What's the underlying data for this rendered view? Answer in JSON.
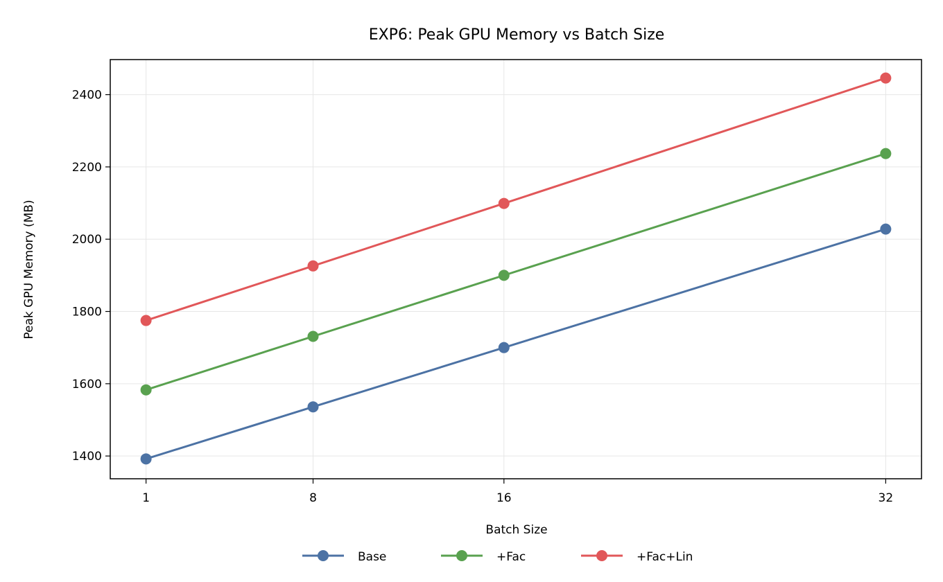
{
  "chart_data": {
    "type": "line",
    "title": "EXP6: Peak GPU Memory vs Batch Size",
    "xlabel": "Batch Size",
    "ylabel": "Peak GPU Memory (MB)",
    "x": [
      1,
      8,
      16,
      32
    ],
    "x_ticks": [
      "1",
      "8",
      "16",
      "32"
    ],
    "xlim": [
      -0.5,
      33.5
    ],
    "ylim": [
      1337,
      2497
    ],
    "y_ticks": [
      1400,
      1600,
      1800,
      2000,
      2200,
      2400
    ],
    "grid": true,
    "legend_position": "bottom-center",
    "series": [
      {
        "name": "Base",
        "color": "#4c72a4",
        "values": [
          1392,
          1536,
          1700,
          2028
        ]
      },
      {
        "name": "+Fac",
        "color": "#59a14f",
        "values": [
          1583,
          1731,
          1900,
          2237
        ]
      },
      {
        "name": "+Fac+Lin",
        "color": "#e15759",
        "values": [
          1775,
          1926,
          2099,
          2446
        ]
      }
    ]
  }
}
